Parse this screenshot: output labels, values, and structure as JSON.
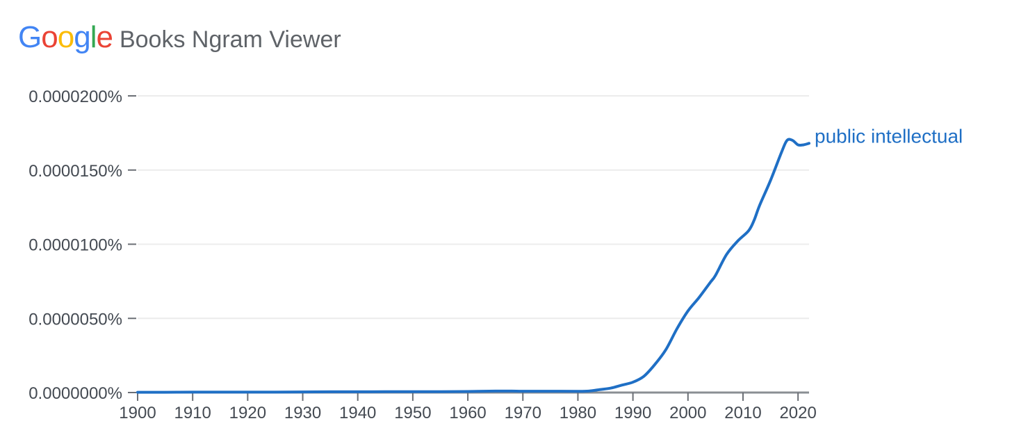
{
  "app": {
    "logo_text": "Google",
    "logo_letters": [
      {
        "ch": "G",
        "color": "#4285F4"
      },
      {
        "ch": "o",
        "color": "#EA4335"
      },
      {
        "ch": "o",
        "color": "#FBBC05"
      },
      {
        "ch": "g",
        "color": "#4285F4"
      },
      {
        "ch": "l",
        "color": "#34A853"
      },
      {
        "ch": "e",
        "color": "#EA4335"
      }
    ],
    "title": "Books Ngram Viewer"
  },
  "chart_data": {
    "type": "line",
    "xlim": [
      1900,
      2022
    ],
    "ylim": [
      0,
      2e-05
    ],
    "x_ticks": [
      1900,
      1910,
      1920,
      1930,
      1940,
      1950,
      1960,
      1970,
      1980,
      1990,
      2000,
      2010,
      2020
    ],
    "y_ticks": [
      0,
      5e-06,
      1e-05,
      1.5e-05,
      2e-05
    ],
    "y_tick_labels": [
      "0.0000000%",
      "0.0000050%",
      "0.0000100%",
      "0.0000150%",
      "0.0000200%"
    ],
    "grid": true,
    "line_color": "#1f6fc5",
    "series": [
      {
        "name": "public intellectual",
        "x": [
          1900,
          1905,
          1910,
          1915,
          1920,
          1925,
          1930,
          1935,
          1940,
          1945,
          1950,
          1955,
          1960,
          1965,
          1968,
          1970,
          1975,
          1980,
          1982,
          1984,
          1986,
          1988,
          1990,
          1992,
          1994,
          1996,
          1998,
          2000,
          2002,
          2004,
          2005,
          2007,
          2009,
          2011,
          2012,
          2013,
          2015,
          2017,
          2018,
          2019,
          2020,
          2021,
          2022
        ],
        "y": [
          2e-08,
          2e-08,
          3e-08,
          3e-08,
          3e-08,
          3e-08,
          4e-08,
          5e-08,
          5e-08,
          6e-08,
          6e-08,
          6e-08,
          7e-08,
          1e-07,
          1e-07,
          9e-08,
          9e-08,
          8e-08,
          1e-07,
          2e-07,
          3e-07,
          5e-07,
          7e-07,
          1.1e-06,
          1.9e-06,
          2.9e-06,
          4.3e-06,
          5.5e-06,
          6.4e-06,
          7.4e-06,
          7.9e-06,
          9.3e-06,
          1.02e-05,
          1.09e-05,
          1.16e-05,
          1.26e-05,
          1.43e-05,
          1.62e-05,
          1.7e-05,
          1.7e-05,
          1.67e-05,
          1.67e-05,
          1.68e-05
        ]
      }
    ]
  }
}
